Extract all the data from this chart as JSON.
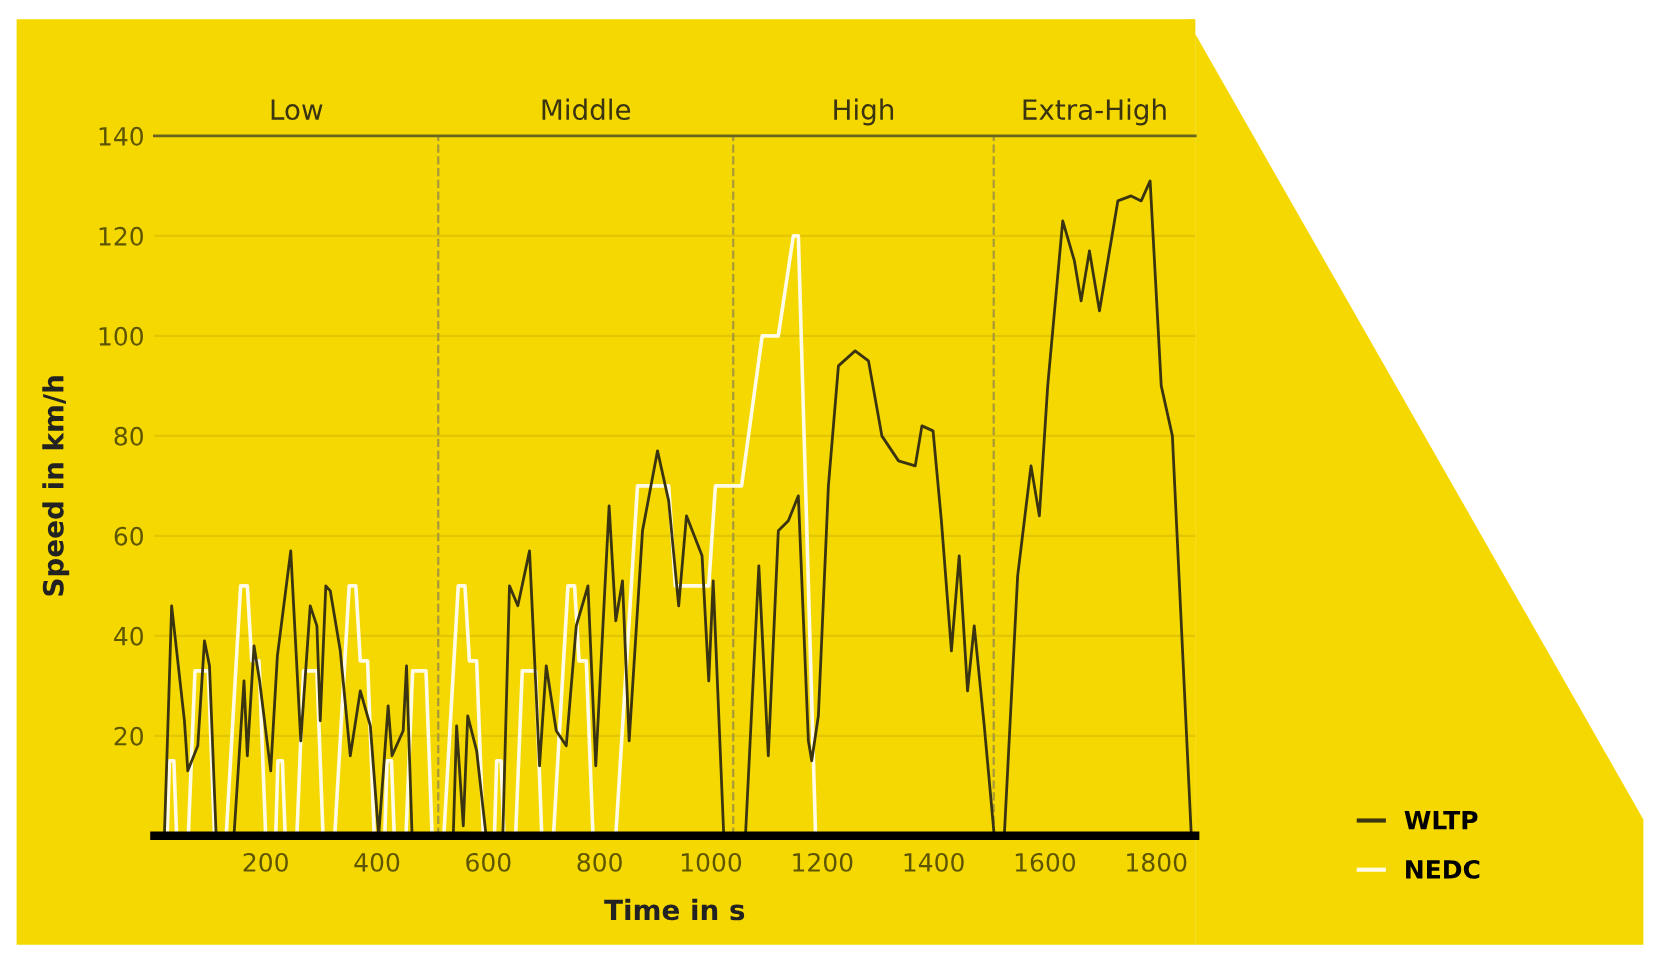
{
  "chart_data": {
    "type": "line",
    "xlabel": "Time in s",
    "ylabel": "Speed in km/h",
    "xlim": [
      0,
      1870
    ],
    "ylim": [
      0,
      140
    ],
    "xticks": [
      200,
      400,
      600,
      800,
      1000,
      1200,
      1400,
      1600,
      1800
    ],
    "yticks": [
      20,
      40,
      60,
      80,
      100,
      120,
      140
    ],
    "grid": "y",
    "legend": "bottom right",
    "marker": "none",
    "line_style": "solid",
    "ref_lines": [
      {
        "axis": "x",
        "value": 510,
        "line_style": "dashed",
        "color": "#a89a3a"
      },
      {
        "axis": "x",
        "value": 1040,
        "line_style": "dashed",
        "color": "#a89a3a"
      },
      {
        "axis": "x",
        "value": 1508,
        "line_style": "dashed",
        "color": "#a89a3a"
      }
    ],
    "annotations": [
      "Low",
      "Middle",
      "High",
      "Extra-High"
    ],
    "series": [
      {
        "name": "NEDC",
        "color": "#fffbe6",
        "x": [
          12,
          23,
          27,
          35,
          40,
          61,
          73,
          97,
          108,
          129,
          155,
          167,
          175,
          188,
          200,
          207,
          218,
          222,
          230,
          235,
          256,
          268,
          292,
          303,
          324,
          350,
          362,
          370,
          383,
          395,
          403,
          414,
          418,
          426,
          431,
          452,
          464,
          488,
          499,
          520,
          546,
          558,
          566,
          579,
          591,
          600,
          611,
          615,
          623,
          628,
          649,
          661,
          685,
          696,
          717,
          743,
          755,
          763,
          776,
          788,
          829,
          868,
          924,
          936,
          996,
          1008,
          1055,
          1092,
          1121,
          1148,
          1157,
          1188
        ],
        "values": [
          0,
          0,
          15,
          15,
          0,
          0,
          33,
          33,
          0,
          0,
          50,
          50,
          35,
          35,
          0,
          0,
          0,
          15,
          15,
          0,
          0,
          33,
          33,
          0,
          0,
          50,
          50,
          35,
          35,
          0,
          0,
          0,
          15,
          15,
          0,
          0,
          33,
          33,
          0,
          0,
          50,
          50,
          35,
          35,
          0,
          0,
          0,
          15,
          15,
          0,
          0,
          33,
          33,
          0,
          0,
          50,
          50,
          35,
          35,
          0,
          0,
          70,
          70,
          50,
          50,
          70,
          70,
          100,
          100,
          120,
          120,
          0
        ]
      },
      {
        "name": "WLTP",
        "color": "#3a3410",
        "x": [
          18,
          26,
          31,
          54,
          60,
          78,
          90,
          99,
          111,
          143,
          161,
          167,
          179,
          189,
          209,
          221,
          245,
          263,
          280,
          292,
          298,
          308,
          316,
          334,
          352,
          370,
          388,
          403,
          420,
          427,
          447,
          453,
          463,
          537,
          543,
          555,
          563,
          579,
          596,
          626,
          638,
          653,
          674,
          692,
          704,
          722,
          740,
          758,
          779,
          793,
          817,
          829,
          841,
          853,
          877,
          904,
          924,
          942,
          956,
          984,
          996,
          1004,
          1023,
          1062,
          1086,
          1103,
          1121,
          1139,
          1157,
          1175,
          1181,
          1193,
          1211,
          1229,
          1259,
          1283,
          1307,
          1337,
          1367,
          1379,
          1399,
          1414,
          1432,
          1446,
          1461,
          1473,
          1491,
          1509,
          1527,
          1551,
          1575,
          1590,
          1605,
          1632,
          1653,
          1665,
          1680,
          1698,
          1719,
          1731,
          1755,
          1773,
          1789,
          1809,
          1829,
          1863
        ],
        "values": [
          0,
          28,
          46,
          23,
          13,
          18,
          39,
          34,
          0,
          0,
          31,
          16,
          38,
          31,
          13,
          36,
          57,
          19,
          46,
          42,
          23,
          50,
          49,
          37,
          16,
          29,
          22,
          0,
          26,
          16,
          21,
          34,
          0,
          0,
          22,
          2,
          24,
          17,
          0,
          0,
          50,
          46,
          57,
          14,
          34,
          21,
          18,
          42,
          50,
          14,
          66,
          43,
          51,
          19,
          61,
          77,
          67,
          46,
          64,
          56,
          31,
          51,
          0,
          0,
          54,
          16,
          61,
          63,
          68,
          19,
          15,
          24,
          70,
          94,
          97,
          95,
          80,
          75,
          74,
          82,
          81,
          63,
          37,
          56,
          29,
          42,
          22,
          0,
          0,
          52,
          74,
          64,
          90,
          123,
          115,
          107,
          117,
          105,
          119,
          127,
          128,
          127,
          131,
          90,
          80,
          0
        ]
      }
    ]
  }
}
